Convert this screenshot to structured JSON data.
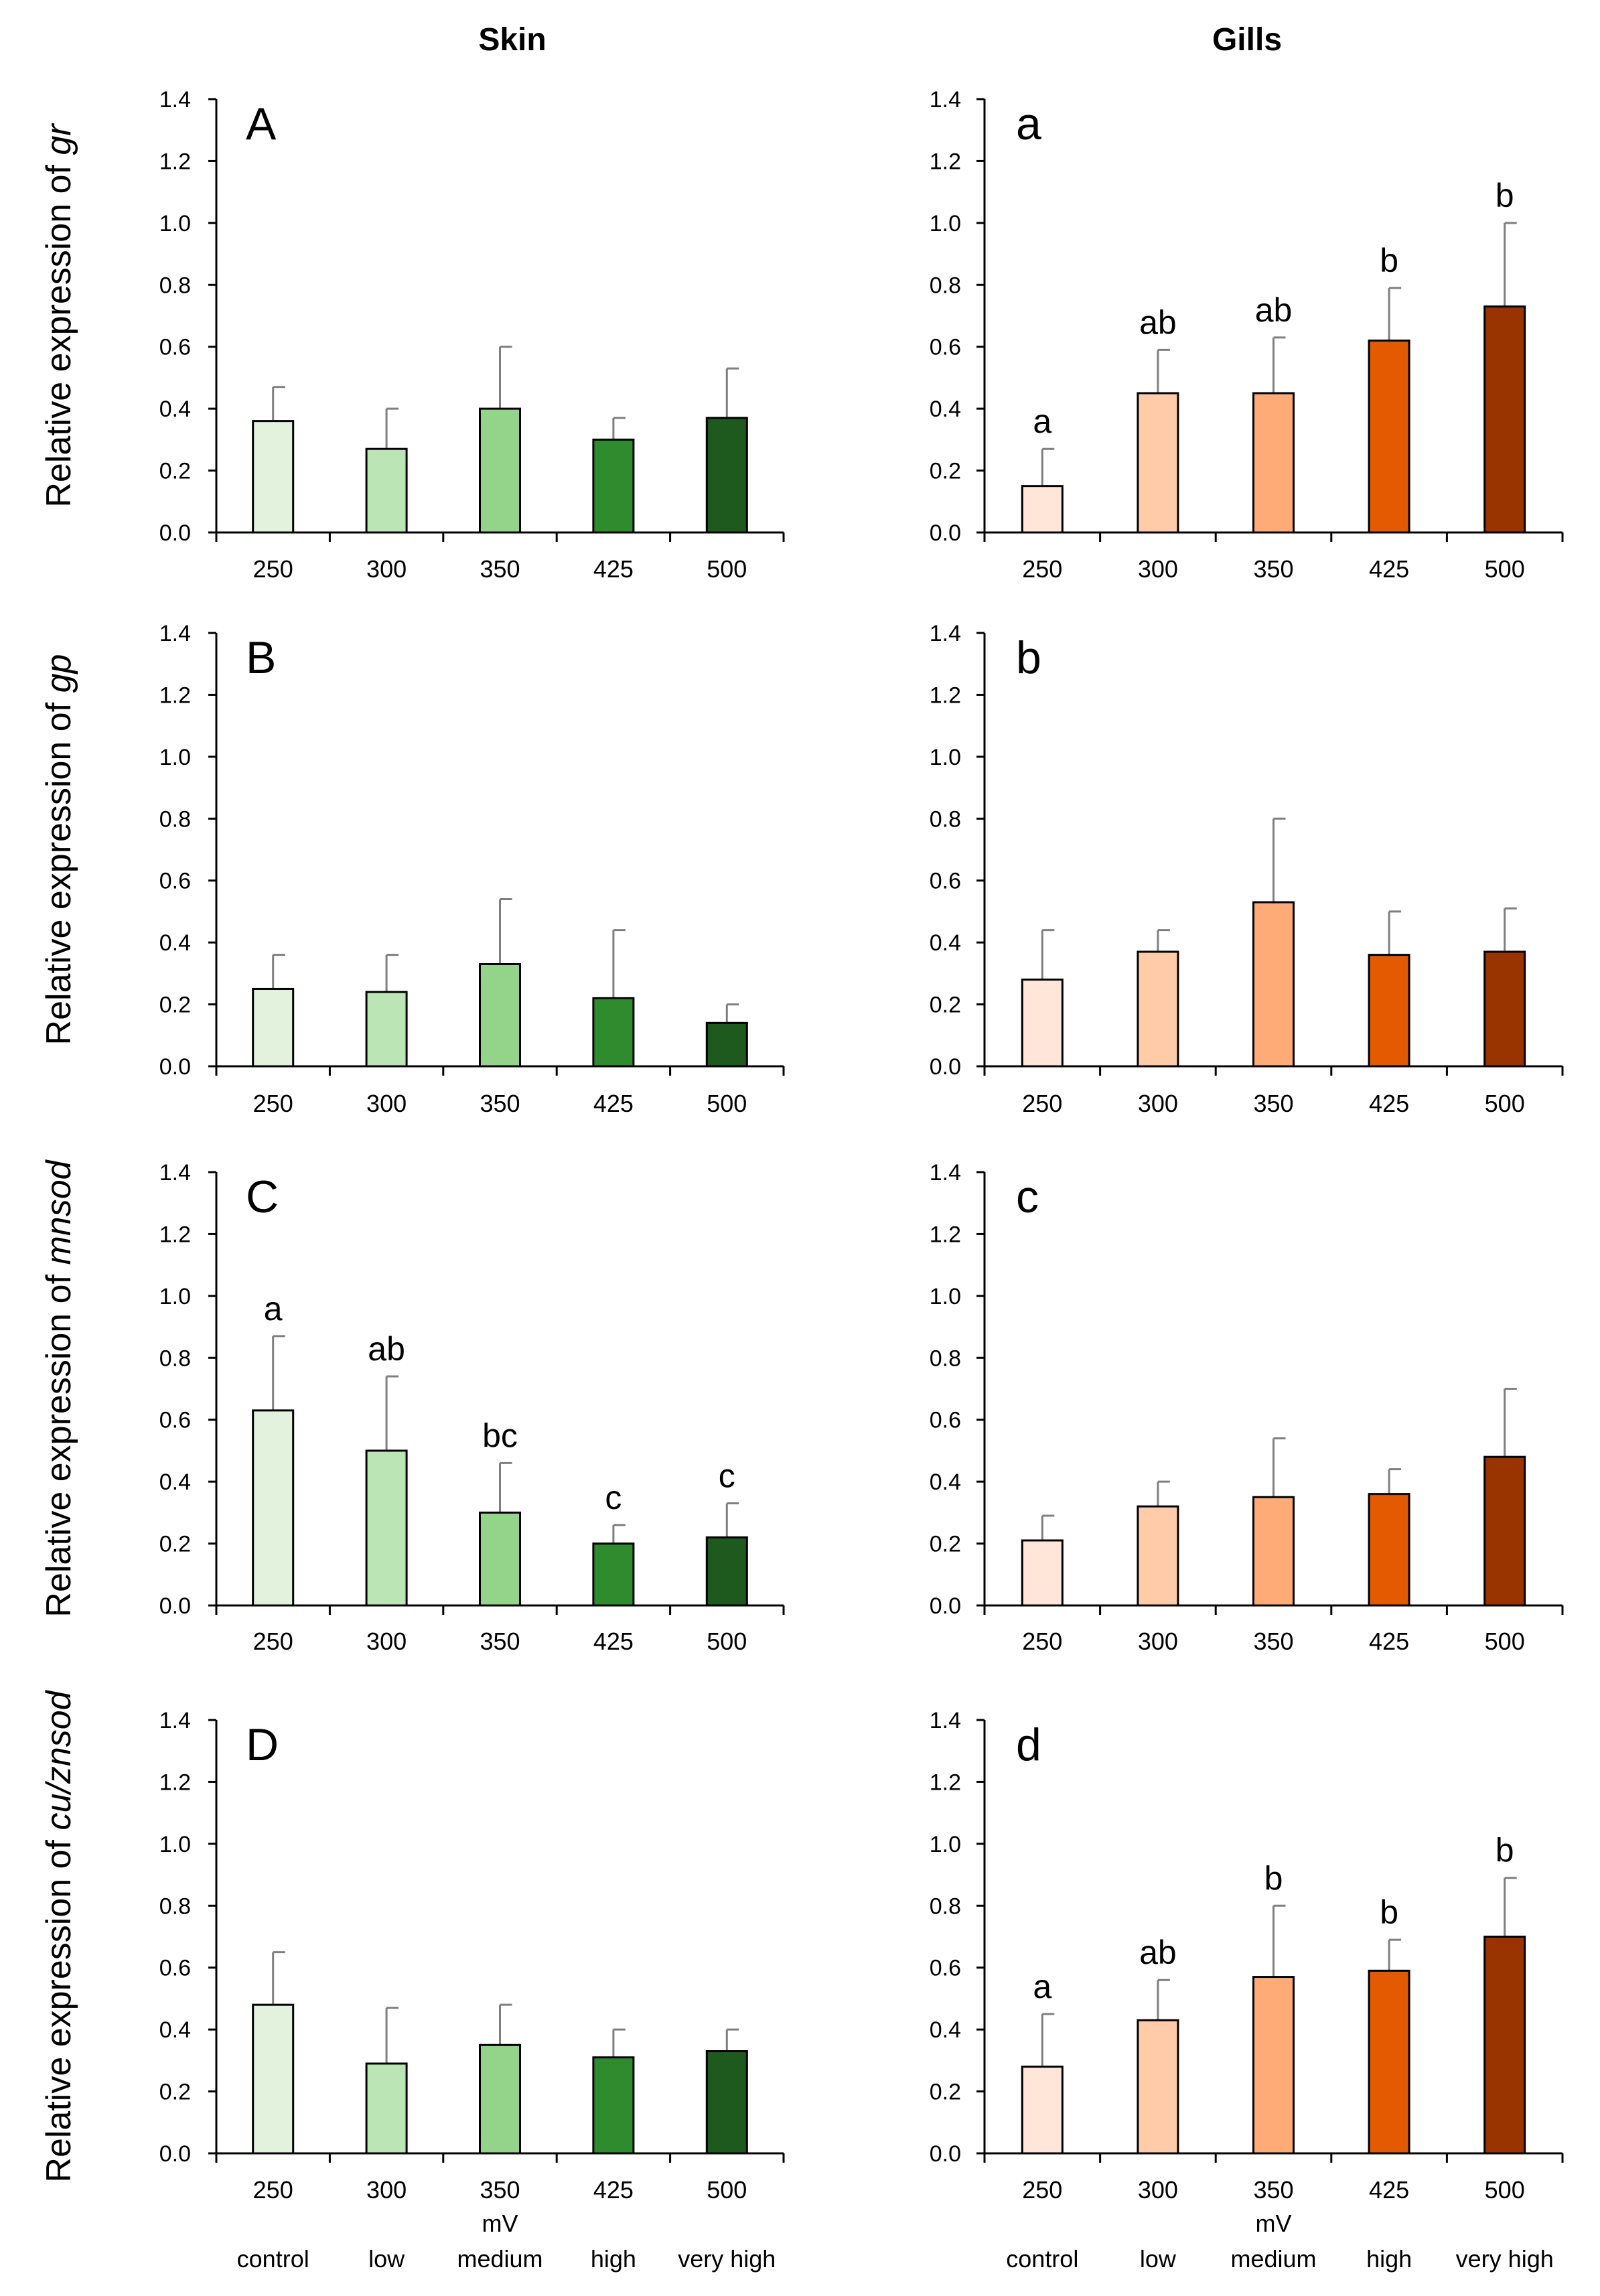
{
  "figure": {
    "column_titles": [
      "Skin",
      "Gills"
    ],
    "row_ylabels": [
      {
        "prefix": "Relative expression of ",
        "gene": "gr"
      },
      {
        "prefix": "Relative expression of ",
        "gene": "gp"
      },
      {
        "prefix": "Relative expression of ",
        "gene": "mnsod"
      },
      {
        "prefix": "Relative expression of ",
        "gene": "cu/znsod"
      }
    ],
    "x_unit_label": "mV",
    "group_labels": [
      "control",
      "low",
      "medium",
      "high",
      "very high"
    ],
    "skin_colors": [
      "#e2f2dd",
      "#bce5b5",
      "#93d38a",
      "#2e8b2e",
      "#1e5a1e"
    ],
    "gill_colors": [
      "#ffe6d9",
      "#ffcba8",
      "#ffab78",
      "#e35a00",
      "#993300"
    ],
    "edge_color": "#000000",
    "error_color": "#7f7f7f"
  },
  "chart_data": [
    {
      "type": "bar",
      "panel": "A",
      "column": "Skin",
      "gene": "gr",
      "categories": [
        "250",
        "300",
        "350",
        "425",
        "500"
      ],
      "values": [
        0.36,
        0.27,
        0.4,
        0.3,
        0.37
      ],
      "errors": [
        0.11,
        0.13,
        0.2,
        0.07,
        0.16
      ],
      "significance": [
        "",
        "",
        "",
        "",
        ""
      ],
      "ylim": [
        0,
        1.4
      ],
      "yticks": [
        "0.0",
        "0.2",
        "0.4",
        "0.6",
        "0.8",
        "1.0",
        "1.2",
        "1.4"
      ]
    },
    {
      "type": "bar",
      "panel": "a",
      "column": "Gills",
      "gene": "gr",
      "categories": [
        "250",
        "300",
        "350",
        "425",
        "500"
      ],
      "values": [
        0.15,
        0.45,
        0.45,
        0.62,
        0.73
      ],
      "errors": [
        0.12,
        0.14,
        0.18,
        0.17,
        0.27
      ],
      "significance": [
        "a",
        "ab",
        "ab",
        "b",
        "b"
      ],
      "ylim": [
        0,
        1.4
      ],
      "yticks": [
        "0.0",
        "0.2",
        "0.4",
        "0.6",
        "0.8",
        "1.0",
        "1.2",
        "1.4"
      ]
    },
    {
      "type": "bar",
      "panel": "B",
      "column": "Skin",
      "gene": "gp",
      "categories": [
        "250",
        "300",
        "350",
        "425",
        "500"
      ],
      "values": [
        0.25,
        0.24,
        0.33,
        0.22,
        0.14
      ],
      "errors": [
        0.11,
        0.12,
        0.21,
        0.22,
        0.06
      ],
      "significance": [
        "",
        "",
        "",
        "",
        ""
      ],
      "ylim": [
        0,
        1.4
      ],
      "yticks": [
        "0.0",
        "0.2",
        "0.4",
        "0.6",
        "0.8",
        "1.0",
        "1.2",
        "1.4"
      ]
    },
    {
      "type": "bar",
      "panel": "b",
      "column": "Gills",
      "gene": "gp",
      "categories": [
        "250",
        "300",
        "350",
        "425",
        "500"
      ],
      "values": [
        0.28,
        0.37,
        0.53,
        0.36,
        0.37
      ],
      "errors": [
        0.16,
        0.07,
        0.27,
        0.14,
        0.14
      ],
      "significance": [
        "",
        "",
        "",
        "",
        ""
      ],
      "ylim": [
        0,
        1.4
      ],
      "yticks": [
        "0.0",
        "0.2",
        "0.4",
        "0.6",
        "0.8",
        "1.0",
        "1.2",
        "1.4"
      ]
    },
    {
      "type": "bar",
      "panel": "C",
      "column": "Skin",
      "gene": "mnsod",
      "categories": [
        "250",
        "300",
        "350",
        "425",
        "500"
      ],
      "values": [
        0.63,
        0.5,
        0.3,
        0.2,
        0.22
      ],
      "errors": [
        0.24,
        0.24,
        0.16,
        0.06,
        0.11
      ],
      "significance": [
        "a",
        "ab",
        "bc",
        "c",
        "c"
      ],
      "ylim": [
        0,
        1.4
      ],
      "yticks": [
        "0.0",
        "0.2",
        "0.4",
        "0.6",
        "0.8",
        "1.0",
        "1.2",
        "1.4"
      ]
    },
    {
      "type": "bar",
      "panel": "c",
      "column": "Gills",
      "gene": "mnsod",
      "categories": [
        "250",
        "300",
        "350",
        "425",
        "500"
      ],
      "values": [
        0.21,
        0.32,
        0.35,
        0.36,
        0.48
      ],
      "errors": [
        0.08,
        0.08,
        0.19,
        0.08,
        0.22
      ],
      "significance": [
        "",
        "",
        "",
        "",
        ""
      ],
      "ylim": [
        0,
        1.4
      ],
      "yticks": [
        "0.0",
        "0.2",
        "0.4",
        "0.6",
        "0.8",
        "1.0",
        "1.2",
        "1.4"
      ]
    },
    {
      "type": "bar",
      "panel": "D",
      "column": "Skin",
      "gene": "cu/znsod",
      "categories": [
        "250",
        "300",
        "350",
        "425",
        "500"
      ],
      "values": [
        0.48,
        0.29,
        0.35,
        0.31,
        0.33
      ],
      "errors": [
        0.17,
        0.18,
        0.13,
        0.09,
        0.07
      ],
      "significance": [
        "",
        "",
        "",
        "",
        ""
      ],
      "ylim": [
        0,
        1.4
      ],
      "yticks": [
        "0.0",
        "0.2",
        "0.4",
        "0.6",
        "0.8",
        "1.0",
        "1.2",
        "1.4"
      ]
    },
    {
      "type": "bar",
      "panel": "d",
      "column": "Gills",
      "gene": "cu/znsod",
      "categories": [
        "250",
        "300",
        "350",
        "425",
        "500"
      ],
      "values": [
        0.28,
        0.43,
        0.57,
        0.59,
        0.7
      ],
      "errors": [
        0.17,
        0.13,
        0.23,
        0.1,
        0.19
      ],
      "significance": [
        "a",
        "ab",
        "b",
        "b",
        "b"
      ],
      "ylim": [
        0,
        1.4
      ],
      "yticks": [
        "0.0",
        "0.2",
        "0.4",
        "0.6",
        "0.8",
        "1.0",
        "1.2",
        "1.4"
      ]
    }
  ]
}
